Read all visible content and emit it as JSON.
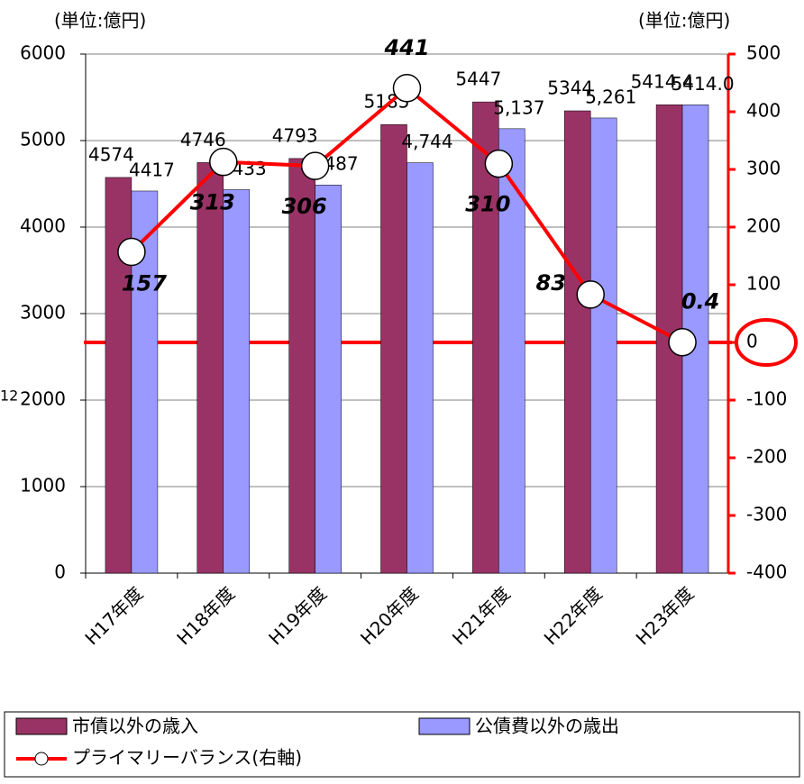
{
  "chart_data": {
    "type": "bar-line",
    "left_unit": "(単位:億円)",
    "right_unit": "(単位:億円)",
    "annotation": "12",
    "categories": [
      "H17年度",
      "H18年度",
      "H19年度",
      "H20年度",
      "H21年度",
      "H22年度",
      "H23年度"
    ],
    "series": [
      {
        "name": "市債以外の歳入",
        "color": "#993366",
        "values": [
          4574,
          4746,
          4793,
          5185,
          5447,
          5344,
          5414.4
        ]
      },
      {
        "name": "公債費以外の歳出",
        "color": "#9999ff",
        "values": [
          4417,
          4433,
          4487,
          4744,
          5137,
          5261,
          5414
        ],
        "value_labels": [
          "4417",
          "4433",
          "4487",
          "4,744",
          "5,137",
          "5,261",
          "5414.0"
        ]
      },
      {
        "name": "プライマリーバランス(右軸)",
        "color": "#ff0000",
        "axis": "y2",
        "values": [
          157,
          313,
          306,
          441,
          310,
          83,
          0.4
        ]
      }
    ],
    "ylim": [
      0,
      6000
    ],
    "yticks": [
      0,
      1000,
      2000,
      3000,
      4000,
      5000,
      6000
    ],
    "y2lim": [
      -400,
      500
    ],
    "y2ticks": [
      -400,
      -300,
      -200,
      -100,
      0,
      100,
      200,
      300,
      400,
      500
    ],
    "grid": true
  }
}
